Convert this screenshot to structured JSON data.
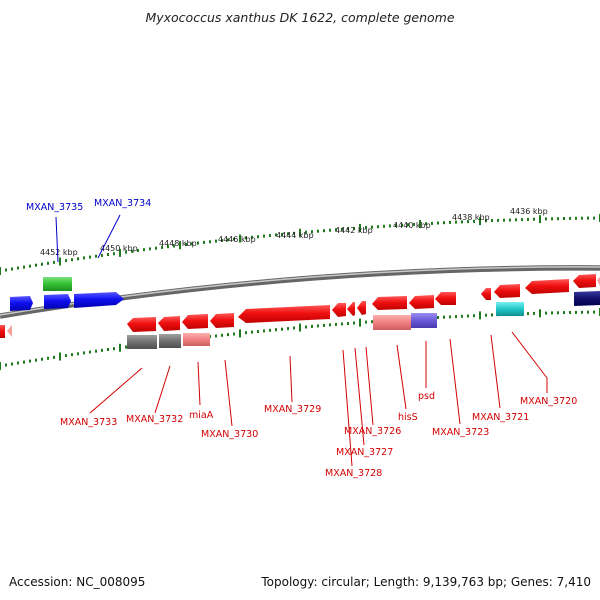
{
  "title": "Myxococcus xanthus DK 1622, complete genome",
  "footer": {
    "accession": "Accession: NC_008095",
    "summary": "Topology: circular; Length: 9,139,763 bp; Genes: 7,410"
  },
  "scale_labels": [
    "4452 kbp",
    "4450 kbp",
    "4448 kbp",
    "4446 kbp",
    "4444 kbp",
    "4442 kbp",
    "4440 kbp",
    "4438 kbp",
    "4436 kbp"
  ],
  "gene_labels": [
    {
      "id": "mxan3735",
      "text": "MXAN_3735",
      "strand": "forward"
    },
    {
      "id": "mxan3734",
      "text": "MXAN_3734",
      "strand": "forward"
    },
    {
      "id": "mxan3733",
      "text": "MXAN_3733",
      "strand": "reverse"
    },
    {
      "id": "mxan3732",
      "text": "MXAN_3732",
      "strand": "reverse"
    },
    {
      "id": "miaA",
      "text": "miaA",
      "strand": "reverse"
    },
    {
      "id": "mxan3730",
      "text": "MXAN_3730",
      "strand": "reverse"
    },
    {
      "id": "mxan3729",
      "text": "MXAN_3729",
      "strand": "reverse"
    },
    {
      "id": "mxan3726",
      "text": "MXAN_3726",
      "strand": "reverse"
    },
    {
      "id": "mxan3727",
      "text": "MXAN_3727",
      "strand": "reverse"
    },
    {
      "id": "mxan3728",
      "text": "MXAN_3728",
      "strand": "reverse"
    },
    {
      "id": "hisS",
      "text": "hisS",
      "strand": "reverse"
    },
    {
      "id": "psd",
      "text": "psd",
      "strand": "reverse"
    },
    {
      "id": "mxan3723",
      "text": "MXAN_3723",
      "strand": "reverse"
    },
    {
      "id": "mxan3721",
      "text": "MXAN_3721",
      "strand": "reverse"
    },
    {
      "id": "mxan3720",
      "text": "MXAN_3720",
      "strand": "reverse"
    }
  ],
  "colors": {
    "forward_strand": "#0000e6",
    "reverse_strand": "#e60000",
    "backbone": "#8a8a8a",
    "ticks": "#1f7a1f",
    "label_forward": "#0000c8",
    "label_reverse": "#d40000"
  }
}
